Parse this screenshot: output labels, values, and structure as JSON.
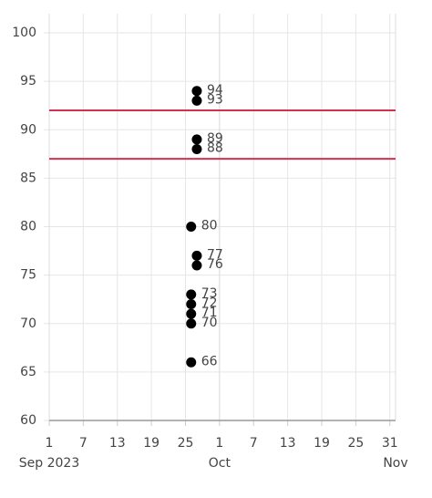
{
  "chart_data": {
    "type": "scatter",
    "x": [
      "2023-09-27",
      "2023-09-27",
      "2023-09-27",
      "2023-09-27",
      "2023-09-26",
      "2023-09-27",
      "2023-09-27",
      "2023-09-26",
      "2023-09-26",
      "2023-09-26",
      "2023-09-26",
      "2023-09-26"
    ],
    "values": [
      94,
      93,
      89,
      88,
      80,
      77,
      76,
      73,
      72,
      71,
      70,
      66
    ],
    "color": "#000000",
    "xlim": [
      "2023-09-01",
      "2023-11-01"
    ],
    "xticks": [
      {
        "value": "2023-09-01",
        "label": "1"
      },
      {
        "value": "2023-09-07",
        "label": "7"
      },
      {
        "value": "2023-09-13",
        "label": "13"
      },
      {
        "value": "2023-09-19",
        "label": "19"
      },
      {
        "value": "2023-09-25",
        "label": "25"
      },
      {
        "value": "2023-10-01",
        "label": "1"
      },
      {
        "value": "2023-10-07",
        "label": "7"
      },
      {
        "value": "2023-10-13",
        "label": "13"
      },
      {
        "value": "2023-10-19",
        "label": "19"
      },
      {
        "value": "2023-10-25",
        "label": "25"
      },
      {
        "value": "2023-10-31",
        "label": "31"
      }
    ],
    "x_period_labels": [
      {
        "value": "2023-09-01",
        "label": "Sep 2023"
      },
      {
        "value": "2023-10-01",
        "label": "Oct"
      },
      {
        "value": "2023-11-01",
        "label": "Nov"
      }
    ],
    "ylim": [
      60,
      100
    ],
    "yticks": [
      60,
      65,
      70,
      75,
      80,
      85,
      90,
      95,
      100
    ],
    "reference_lines": [
      92,
      87
    ],
    "reference_color": "#d6304f",
    "grid": true
  }
}
